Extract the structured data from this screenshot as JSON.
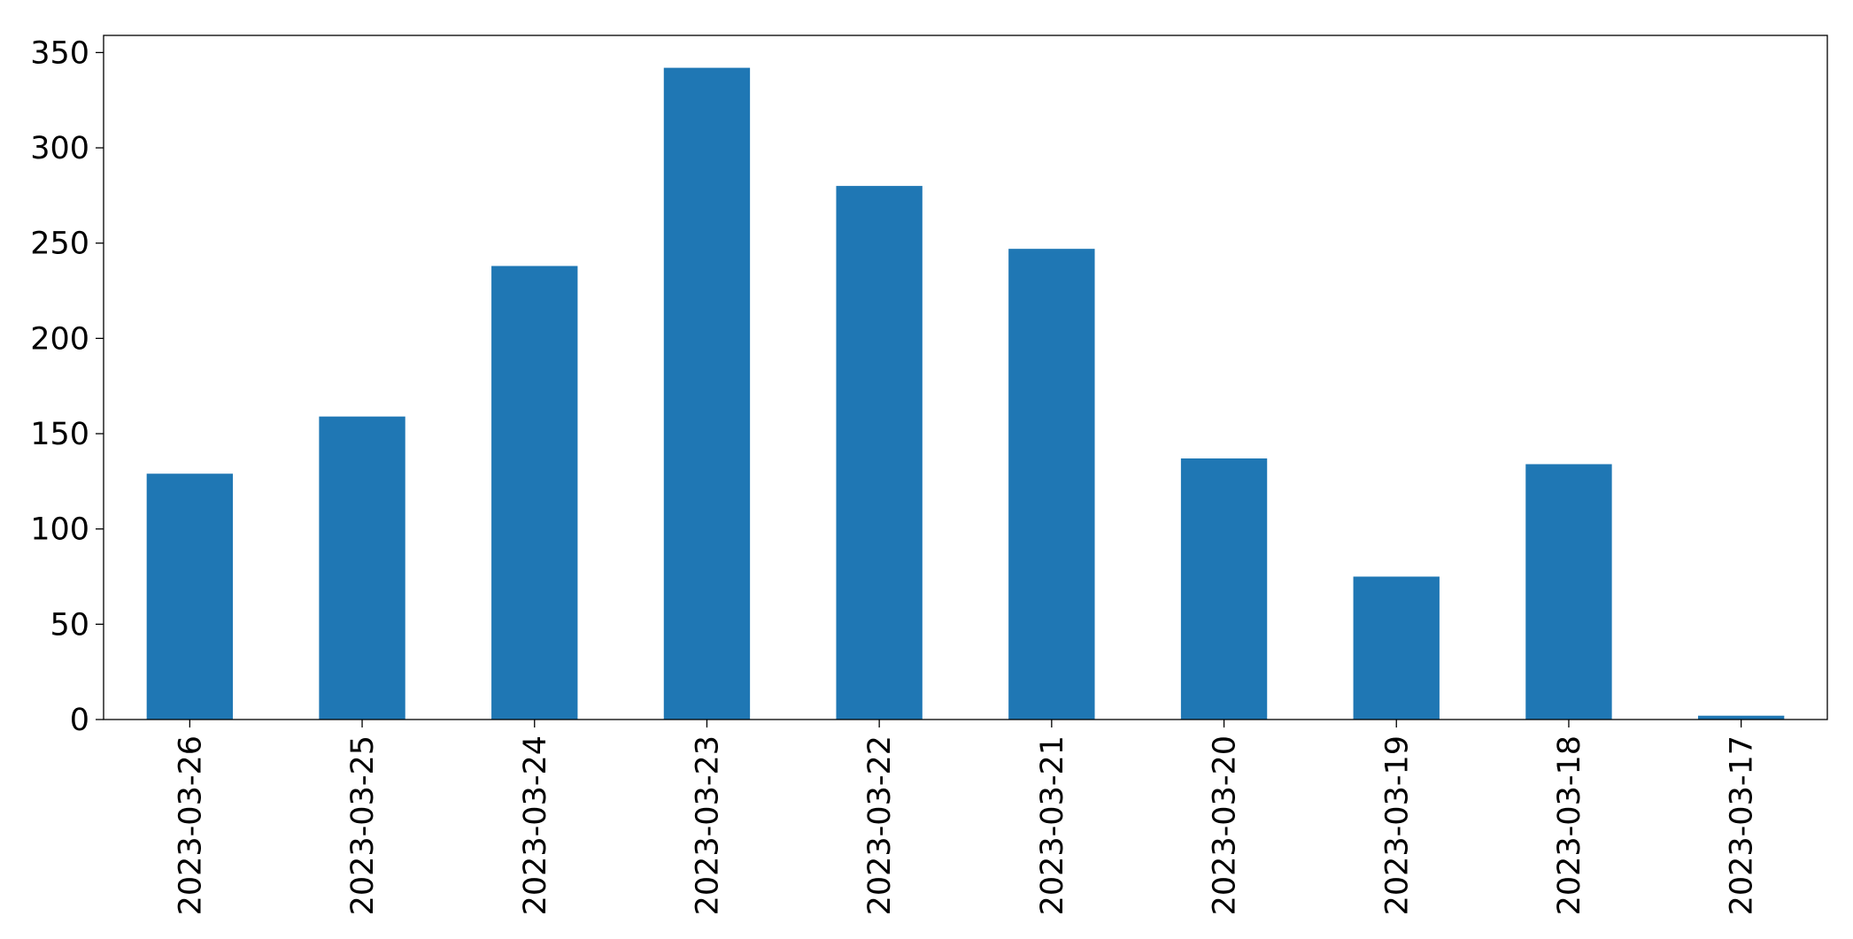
{
  "chart_data": {
    "type": "bar",
    "categories": [
      "2023-03-26",
      "2023-03-25",
      "2023-03-24",
      "2023-03-23",
      "2023-03-22",
      "2023-03-21",
      "2023-03-20",
      "2023-03-19",
      "2023-03-18",
      "2023-03-17"
    ],
    "values": [
      129,
      159,
      238,
      342,
      280,
      247,
      137,
      75,
      134,
      2
    ],
    "color": "#1f77b4",
    "ylim": [
      0,
      359
    ],
    "yticks": [
      0,
      50,
      100,
      150,
      200,
      250,
      300,
      350
    ],
    "grid": false
  }
}
